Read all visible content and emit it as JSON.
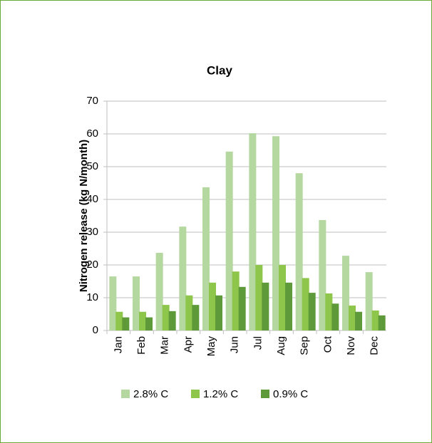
{
  "chart_data": {
    "type": "bar",
    "title": "Clay",
    "y_label": "Nitrogen release (kg N/month)",
    "categories": [
      "Jan",
      "Feb",
      "Mar",
      "Apr",
      "May",
      "Jun",
      "Jul",
      "Aug",
      "Sep",
      "Oct",
      "Nov",
      "Dec"
    ],
    "series": [
      {
        "name": "2.8% C",
        "color": "#b5d8a0",
        "values": [
          16.5,
          16.5,
          23.7,
          31.7,
          43.7,
          54.6,
          60.2,
          59.3,
          48,
          33.7,
          22.8,
          17.8
        ]
      },
      {
        "name": "1.2% C",
        "color": "#8dc64a",
        "values": [
          5.7,
          5.7,
          7.8,
          10.7,
          14.6,
          18,
          20,
          20,
          16,
          11.3,
          7.6,
          6.1
        ]
      },
      {
        "name": "0.9% C",
        "color": "#5e9a3a",
        "values": [
          4,
          4,
          5.9,
          7.8,
          10.7,
          13.3,
          14.6,
          14.6,
          11.5,
          8.2,
          5.7,
          4.6
        ]
      }
    ],
    "ylim": [
      0,
      70
    ],
    "yticks": [
      0,
      10,
      20,
      30,
      40,
      50,
      60,
      70
    ],
    "grid": true,
    "legend": "bottom"
  }
}
